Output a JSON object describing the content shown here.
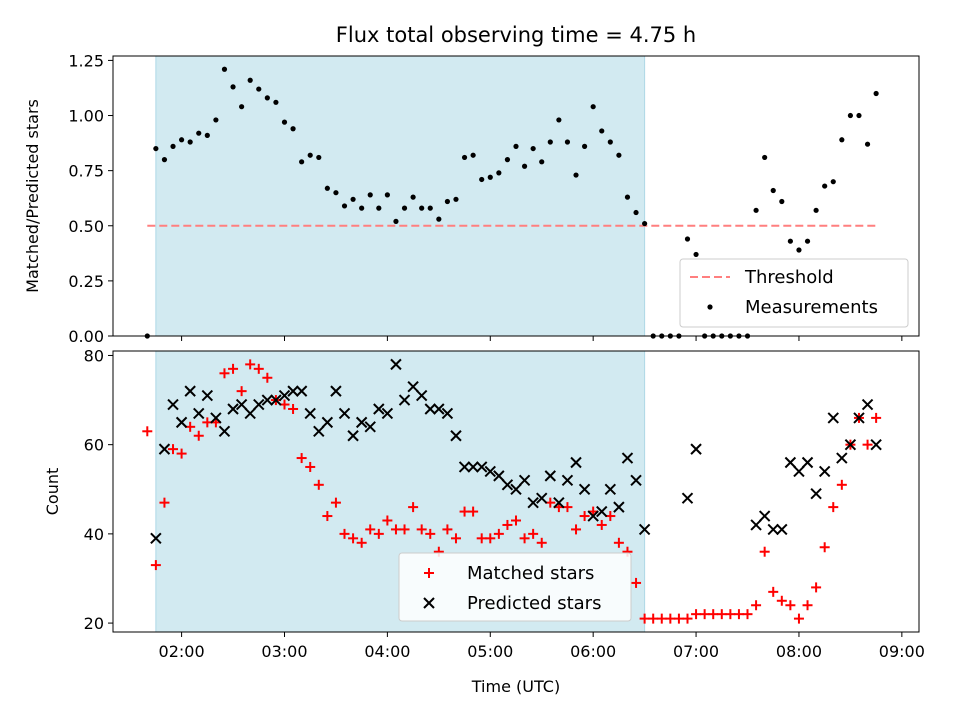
{
  "title": "Flux total observing time = 4.75 h",
  "shading_color": "#add8e6",
  "chart_data": [
    {
      "type": "scatter",
      "ylabel": "Matched/Predicted stars",
      "ylim": [
        0,
        1.27
      ],
      "yticks": [
        0,
        0.25,
        0.5,
        0.75,
        1.0,
        1.25
      ],
      "ytick_labels": [
        "0.00",
        "0.25",
        "0.50",
        "0.75",
        "1.00",
        "1.25"
      ],
      "shaded_range": [
        "01:45",
        "06:30"
      ],
      "threshold": {
        "name": "Threshold",
        "value": 0.5,
        "x_range": [
          "01:40",
          "08:45"
        ],
        "color": "#ff7f7f"
      },
      "series": [
        {
          "name": "Measurements",
          "color": "#000000",
          "x": [
            "01:40",
            "01:45",
            "01:50",
            "01:55",
            "02:00",
            "02:05",
            "02:10",
            "02:15",
            "02:20",
            "02:25",
            "02:30",
            "02:35",
            "02:40",
            "02:45",
            "02:50",
            "02:55",
            "03:00",
            "03:05",
            "03:10",
            "03:15",
            "03:20",
            "03:25",
            "03:30",
            "03:35",
            "03:40",
            "03:45",
            "03:50",
            "03:55",
            "04:00",
            "04:05",
            "04:10",
            "04:15",
            "04:20",
            "04:25",
            "04:30",
            "04:35",
            "04:40",
            "04:45",
            "04:50",
            "04:55",
            "05:00",
            "05:05",
            "05:10",
            "05:15",
            "05:20",
            "05:25",
            "05:30",
            "05:35",
            "05:40",
            "05:45",
            "05:50",
            "05:55",
            "06:00",
            "06:05",
            "06:10",
            "06:15",
            "06:20",
            "06:25",
            "06:30",
            "06:35",
            "06:40",
            "06:45",
            "06:50",
            "06:55",
            "07:00",
            "07:05",
            "07:10",
            "07:15",
            "07:20",
            "07:25",
            "07:30",
            "07:35",
            "07:40",
            "07:45",
            "07:50",
            "07:55",
            "08:00",
            "08:05",
            "08:10",
            "08:15",
            "08:20",
            "08:25",
            "08:30",
            "08:35",
            "08:40",
            "08:45"
          ],
          "y": [
            0.0,
            0.85,
            0.8,
            0.86,
            0.89,
            0.88,
            0.92,
            0.91,
            0.98,
            1.21,
            1.13,
            1.04,
            1.16,
            1.12,
            1.08,
            1.06,
            0.97,
            0.94,
            0.79,
            0.82,
            0.81,
            0.67,
            0.65,
            0.59,
            0.62,
            0.58,
            0.64,
            0.58,
            0.64,
            0.52,
            0.58,
            0.63,
            0.58,
            0.58,
            0.53,
            0.61,
            0.62,
            0.81,
            0.82,
            0.71,
            0.72,
            0.74,
            0.8,
            0.86,
            0.77,
            0.85,
            0.79,
            0.88,
            0.98,
            0.88,
            0.73,
            0.86,
            1.04,
            0.93,
            0.88,
            0.82,
            0.63,
            0.56,
            0.51,
            0.0,
            0.0,
            0.0,
            0.0,
            0.44,
            0.37,
            0.0,
            0.0,
            0.0,
            0.0,
            0.0,
            0.0,
            0.57,
            0.81,
            0.66,
            0.61,
            0.43,
            0.39,
            0.43,
            0.57,
            0.68,
            0.7,
            0.89,
            1.0,
            1.0,
            0.87,
            1.1
          ]
        }
      ]
    },
    {
      "type": "scatter",
      "xlabel": "Time (UTC)",
      "ylabel": "Count",
      "ylim": [
        18,
        81
      ],
      "yticks": [
        20,
        40,
        60,
        80
      ],
      "xlim": [
        "01:20",
        "09:10"
      ],
      "xticks": [
        "02:00",
        "03:00",
        "04:00",
        "05:00",
        "06:00",
        "07:00",
        "08:00",
        "09:00"
      ],
      "shaded_range": [
        "01:45",
        "06:30"
      ],
      "series": [
        {
          "name": "Matched stars",
          "marker": "+",
          "color": "#ff0000",
          "x": [
            "01:40",
            "01:45",
            "01:50",
            "01:55",
            "02:00",
            "02:05",
            "02:10",
            "02:15",
            "02:20",
            "02:25",
            "02:30",
            "02:35",
            "02:40",
            "02:45",
            "02:50",
            "02:55",
            "03:00",
            "03:05",
            "03:10",
            "03:15",
            "03:20",
            "03:25",
            "03:30",
            "03:35",
            "03:40",
            "03:45",
            "03:50",
            "03:55",
            "04:00",
            "04:05",
            "04:10",
            "04:15",
            "04:20",
            "04:25",
            "04:30",
            "04:35",
            "04:40",
            "04:45",
            "04:50",
            "04:55",
            "05:00",
            "05:05",
            "05:10",
            "05:15",
            "05:20",
            "05:25",
            "05:30",
            "05:35",
            "05:40",
            "05:45",
            "05:50",
            "05:55",
            "06:00",
            "06:05",
            "06:10",
            "06:15",
            "06:20",
            "06:25",
            "06:30",
            "06:35",
            "06:40",
            "06:45",
            "06:50",
            "06:55",
            "07:00",
            "07:05",
            "07:10",
            "07:15",
            "07:20",
            "07:25",
            "07:30",
            "07:35",
            "07:40",
            "07:45",
            "07:50",
            "07:55",
            "08:00",
            "08:05",
            "08:10",
            "08:15",
            "08:20",
            "08:25",
            "08:30",
            "08:35",
            "08:40",
            "08:45"
          ],
          "y": [
            63,
            33,
            47,
            59,
            58,
            64,
            62,
            65,
            65,
            76,
            77,
            72,
            78,
            77,
            75,
            70,
            69,
            68,
            57,
            55,
            51,
            44,
            47,
            40,
            39,
            38,
            41,
            40,
            43,
            41,
            41,
            46,
            41,
            40,
            36,
            41,
            39,
            45,
            45,
            39,
            39,
            40,
            42,
            43,
            39,
            40,
            38,
            47,
            46,
            46,
            41,
            44,
            45,
            42,
            44,
            38,
            36,
            29,
            21,
            21,
            21,
            21,
            21,
            21,
            22,
            22,
            22,
            22,
            22,
            22,
            22,
            24,
            36,
            27,
            25,
            24,
            21,
            24,
            28,
            37,
            46,
            51,
            60,
            66,
            60,
            66
          ]
        },
        {
          "name": "Predicted stars",
          "marker": "x",
          "color": "#000000",
          "x": [
            "01:45",
            "01:50",
            "01:55",
            "02:00",
            "02:05",
            "02:10",
            "02:15",
            "02:20",
            "02:25",
            "02:30",
            "02:35",
            "02:40",
            "02:45",
            "02:50",
            "02:55",
            "03:00",
            "03:05",
            "03:10",
            "03:15",
            "03:20",
            "03:25",
            "03:30",
            "03:35",
            "03:40",
            "03:45",
            "03:50",
            "03:55",
            "04:00",
            "04:05",
            "04:10",
            "04:15",
            "04:20",
            "04:25",
            "04:30",
            "04:35",
            "04:40",
            "04:45",
            "04:50",
            "04:55",
            "05:00",
            "05:05",
            "05:10",
            "05:15",
            "05:20",
            "05:25",
            "05:30",
            "05:35",
            "05:40",
            "05:45",
            "05:50",
            "05:55",
            "06:00",
            "06:05",
            "06:10",
            "06:15",
            "06:20",
            "06:25",
            "06:30",
            "06:55",
            "07:00",
            "07:35",
            "07:40",
            "07:45",
            "07:50",
            "07:55",
            "08:00",
            "08:05",
            "08:10",
            "08:15",
            "08:20",
            "08:25",
            "08:30",
            "08:35",
            "08:40",
            "08:45"
          ],
          "y": [
            39,
            59,
            69,
            65,
            72,
            67,
            71,
            66,
            63,
            68,
            69,
            67,
            69,
            70,
            70,
            71,
            72,
            72,
            67,
            63,
            65,
            72,
            67,
            62,
            65,
            64,
            68,
            67,
            78,
            70,
            73,
            71,
            68,
            68,
            67,
            62,
            55,
            55,
            55,
            54,
            53,
            51,
            50,
            52,
            47,
            48,
            53,
            47,
            52,
            56,
            50,
            44,
            45,
            50,
            46,
            57,
            52,
            41,
            48,
            59,
            42,
            44,
            41,
            41,
            56,
            54,
            56,
            49,
            54,
            66,
            57,
            60,
            66,
            69,
            60
          ]
        }
      ]
    }
  ]
}
